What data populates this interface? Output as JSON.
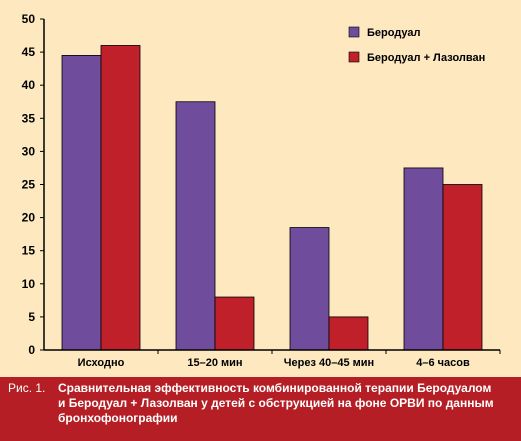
{
  "chart_data": {
    "type": "bar",
    "categories": [
      "Исходно",
      "15–20 мин",
      "Через 40–45 мин",
      "4–6 часов"
    ],
    "series": [
      {
        "name": "Беродуал",
        "values": [
          44.5,
          37.5,
          18.5,
          27.5
        ],
        "color": "#6f4d9c"
      },
      {
        "name": "Беродуал + Лазолван",
        "values": [
          46,
          8,
          5,
          25
        ],
        "color": "#c0202a"
      }
    ],
    "ylim": [
      0,
      50
    ],
    "yticks": [
      0,
      5,
      10,
      15,
      20,
      25,
      30,
      35,
      40,
      45,
      50
    ],
    "title": "",
    "xlabel": "",
    "ylabel": "",
    "grid": false,
    "legend_position": "top-right"
  },
  "caption": {
    "prefix": "Рис. 1.",
    "text": "Сравнительная эффективность комбинированной терапии Беродуалом и Беродуал + Лазолван у детей с обструкцией на фоне ОРВИ по данным бронхофонографии"
  },
  "colors": {
    "background": "#fde8c0",
    "caption_bg": "#b41e24",
    "caption_text": "#ffffff"
  }
}
